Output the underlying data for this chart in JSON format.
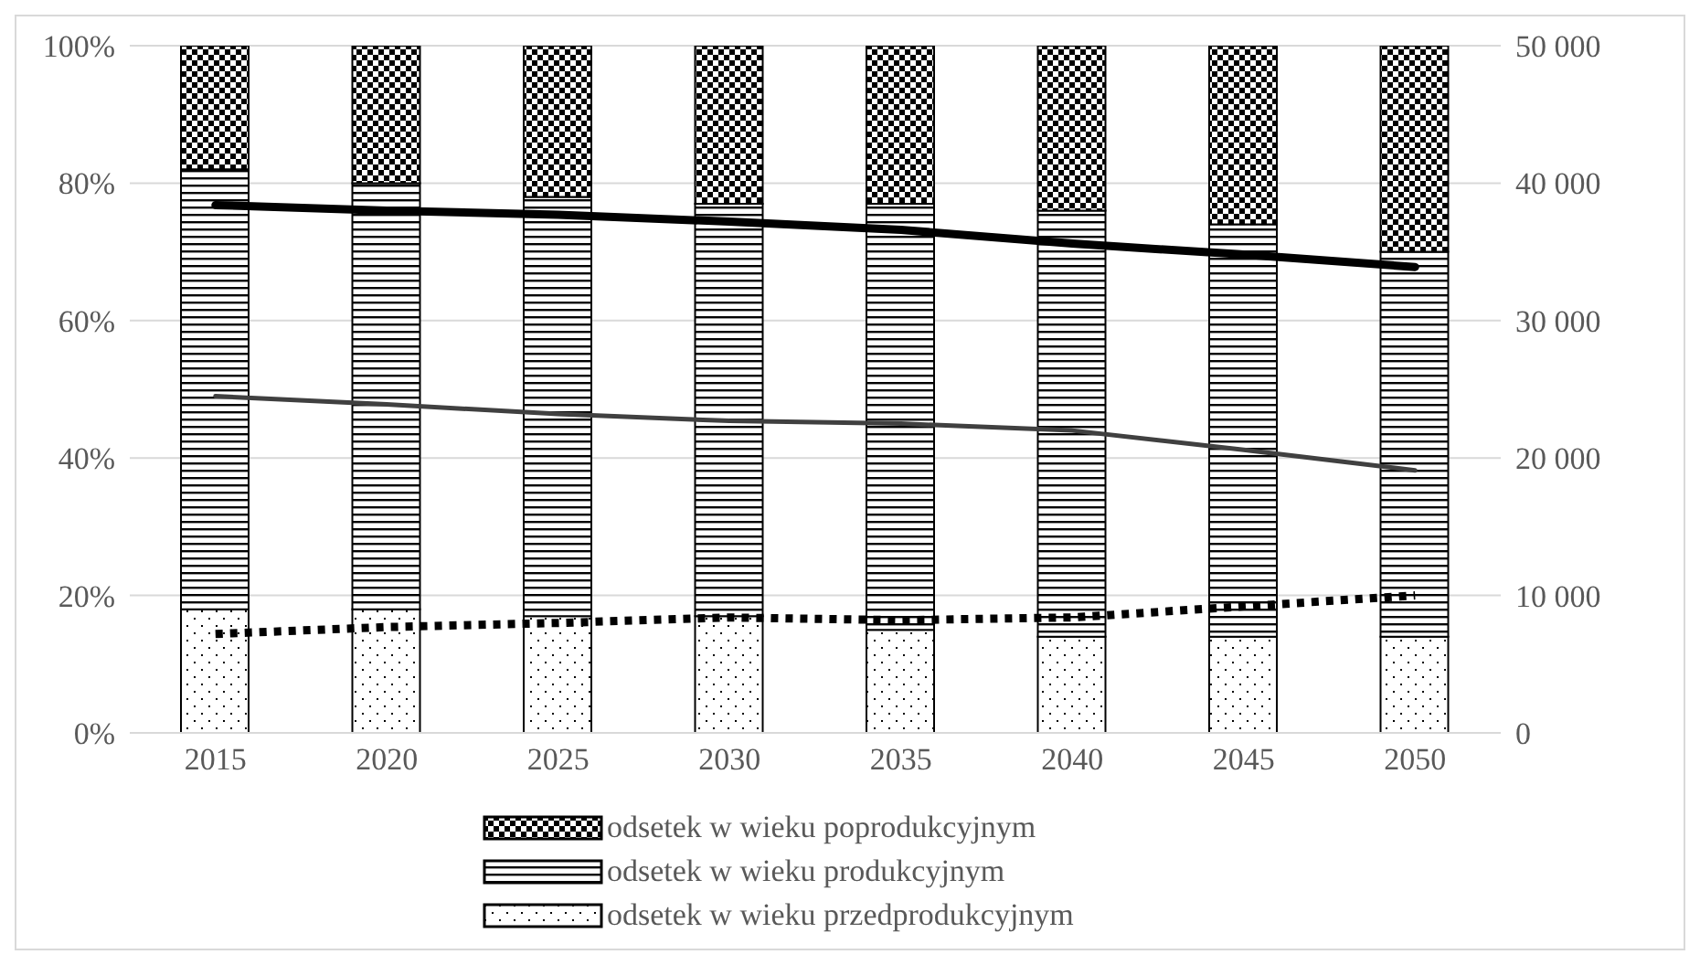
{
  "chart_data": {
    "type": "bar",
    "stacked": true,
    "categories": [
      "2015",
      "2020",
      "2025",
      "2030",
      "2035",
      "2040",
      "2045",
      "2050"
    ],
    "series": [
      {
        "name": "odsetek w wieku przedprodukcyjnym",
        "color": "#000000",
        "values": [
          18,
          18,
          17,
          17,
          15,
          14,
          14,
          14
        ]
      },
      {
        "name": "odsetek w wieku produkcyjnym",
        "color": "#000000",
        "values": [
          64,
          62,
          61,
          60,
          62,
          62,
          60,
          56
        ]
      },
      {
        "name": "odsetek w wieku poprodukcyjnym",
        "color": "#000000",
        "values": [
          18,
          20,
          22,
          23,
          23,
          24,
          26,
          30
        ]
      },
      {
        "type": "line",
        "axis": "y2",
        "color": "#000000",
        "line_style": "solid",
        "values": [
          38400,
          38000,
          37700,
          37200,
          36600,
          35600,
          34800,
          33900
        ]
      },
      {
        "type": "line",
        "axis": "y2",
        "color": "#404040",
        "line_style": "solid",
        "values": [
          24500,
          23900,
          23200,
          22700,
          22500,
          22000,
          20600,
          19100
        ]
      },
      {
        "type": "line",
        "axis": "y2",
        "color": "#000000",
        "line_style": "dotted",
        "values": [
          7200,
          7700,
          8000,
          8400,
          8200,
          8400,
          9200,
          10000
        ]
      }
    ],
    "ylim": [
      0,
      100
    ],
    "yticks": [
      {
        "value": 0,
        "label": "0%"
      },
      {
        "value": 20,
        "label": "20%"
      },
      {
        "value": 40,
        "label": "40%"
      },
      {
        "value": 60,
        "label": "60%"
      },
      {
        "value": 80,
        "label": "80%"
      },
      {
        "value": 100,
        "label": "100%"
      }
    ],
    "y2lim": [
      0,
      50000
    ],
    "y2ticks": [
      0,
      {
        "value": 10000,
        "label": "10 000"
      },
      {
        "value": 20000,
        "label": "20 000"
      },
      {
        "value": 30000,
        "label": "30 000"
      },
      {
        "value": 40000,
        "label": "40 000"
      },
      {
        "value": 50000,
        "label": "50 000"
      }
    ],
    "grid": "y",
    "legend": "bottom",
    "marker": "none"
  }
}
